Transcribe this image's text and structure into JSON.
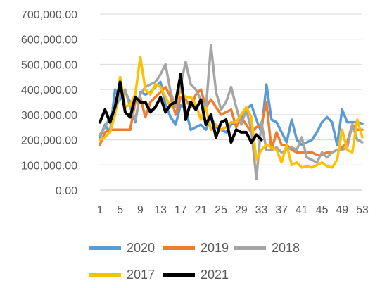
{
  "chart_data": {
    "type": "line",
    "title": "",
    "xlabel": "",
    "ylabel": "",
    "x_tick_labels": [
      "1",
      "5",
      "9",
      "13",
      "17",
      "21",
      "25",
      "29",
      "33",
      "37",
      "41",
      "45",
      "49",
      "53"
    ],
    "y_tick_labels": [
      "0.00",
      "100,000.00",
      "200,000.00",
      "300,000.00",
      "400,000.00",
      "500,000.00",
      "600,000.00",
      "700,000.00"
    ],
    "xlim": [
      1,
      53
    ],
    "ylim": [
      0,
      700000
    ],
    "y_tick_step": 100000,
    "grid": "horizontal",
    "legend_position": "bottom",
    "series": [
      {
        "name": "2020",
        "color": "#5B9BD5",
        "values": [
          210000,
          260000,
          230000,
          400000,
          360000,
          390000,
          350000,
          270000,
          390000,
          380000,
          390000,
          410000,
          430000,
          340000,
          290000,
          260000,
          340000,
          320000,
          240000,
          250000,
          260000,
          240000,
          290000,
          250000,
          240000,
          230000,
          260000,
          270000,
          280000,
          320000,
          340000,
          280000,
          230000,
          420000,
          280000,
          270000,
          230000,
          190000,
          280000,
          200000,
          180000,
          190000,
          200000,
          230000,
          270000,
          290000,
          270000,
          180000,
          320000,
          270000,
          270000,
          270000,
          265000
        ]
      },
      {
        "name": "2019",
        "color": "#ED7D31",
        "values": [
          180000,
          230000,
          240000,
          240000,
          240000,
          240000,
          240000,
          350000,
          370000,
          290000,
          350000,
          370000,
          390000,
          410000,
          370000,
          300000,
          370000,
          360000,
          330000,
          380000,
          400000,
          330000,
          360000,
          330000,
          300000,
          310000,
          320000,
          250000,
          290000,
          260000,
          230000,
          250000,
          260000,
          350000,
          160000,
          230000,
          180000,
          180000,
          160000,
          150000,
          150000,
          150000,
          150000,
          140000,
          140000,
          150000,
          150000,
          160000,
          170000,
          190000,
          260000,
          240000,
          240000
        ]
      },
      {
        "name": "2018",
        "color": "#A5A5A5",
        "values": [
          220000,
          250000,
          290000,
          310000,
          380000,
          400000,
          330000,
          280000,
          380000,
          410000,
          420000,
          430000,
          460000,
          500000,
          390000,
          330000,
          420000,
          510000,
          420000,
          400000,
          360000,
          320000,
          575000,
          390000,
          320000,
          350000,
          410000,
          330000,
          260000,
          320000,
          240000,
          45000,
          270000,
          160000,
          160000,
          170000,
          150000,
          160000,
          170000,
          160000,
          210000,
          130000,
          120000,
          110000,
          150000,
          130000,
          150000,
          160000,
          160000,
          170000,
          260000,
          200000,
          190000
        ]
      },
      {
        "name": "2017",
        "color": "#FFC000",
        "values": [
          200000,
          210000,
          230000,
          300000,
          450000,
          330000,
          340000,
          380000,
          530000,
          400000,
          380000,
          420000,
          410000,
          370000,
          330000,
          360000,
          390000,
          370000,
          370000,
          340000,
          280000,
          330000,
          240000,
          260000,
          240000,
          250000,
          270000,
          270000,
          300000,
          330000,
          290000,
          120000,
          160000,
          180000,
          170000,
          160000,
          110000,
          180000,
          100000,
          110000,
          90000,
          95000,
          90000,
          100000,
          110000,
          95000,
          90000,
          120000,
          240000,
          160000,
          150000,
          280000,
          210000
        ]
      },
      {
        "name": "2021",
        "color": "#000000",
        "values": [
          270000,
          320000,
          270000,
          330000,
          430000,
          310000,
          290000,
          370000,
          350000,
          350000,
          310000,
          330000,
          370000,
          310000,
          340000,
          350000,
          460000,
          280000,
          350000,
          320000,
          360000,
          260000,
          300000,
          210000,
          270000,
          280000,
          190000,
          240000,
          230000,
          230000,
          190000,
          220000,
          200000
        ]
      }
    ]
  }
}
